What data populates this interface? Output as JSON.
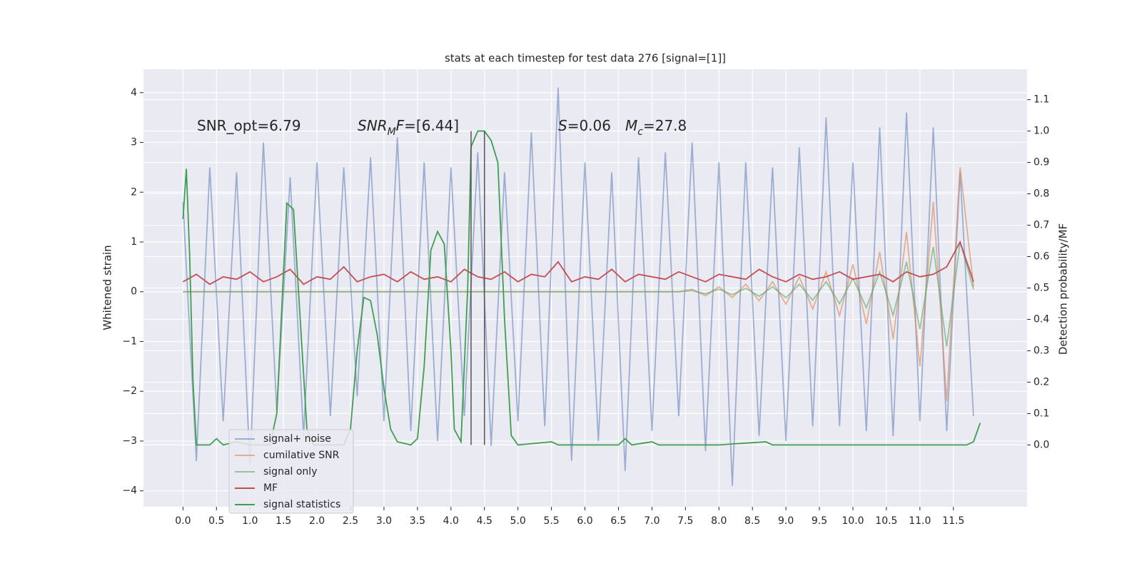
{
  "chart_data": {
    "type": "line",
    "title": "stats at each timestep for test data 276 [signal=[1]]",
    "ylabel": "Whitened strain",
    "y2label": "Detection probability/MF",
    "xlim": [
      -0.59,
      12.6
    ],
    "ylim": [
      -4.32,
      4.47
    ],
    "y2lim": [
      -0.197,
      1.197
    ],
    "grid": true,
    "legend": "lower left",
    "xticks": [
      {
        "value": 0,
        "label": "0.0"
      },
      0.5,
      {
        "value": 1,
        "label": "1.0"
      },
      1.5,
      {
        "value": 2,
        "label": "2.0"
      },
      2.5,
      {
        "value": 3,
        "label": "3.0"
      },
      3.5,
      {
        "value": 4,
        "label": "4.0"
      },
      4.5,
      {
        "value": 5,
        "label": "5.0"
      },
      5.5,
      {
        "value": 6,
        "label": "6.0"
      },
      6.5,
      {
        "value": 7,
        "label": "7.0"
      },
      7.5,
      {
        "value": 8,
        "label": "8.0"
      },
      8.5,
      {
        "value": 9,
        "label": "9.0"
      },
      9.5,
      {
        "value": 10,
        "label": "10.0"
      },
      10.5,
      {
        "value": 11,
        "label": "11.0"
      },
      11.5
    ],
    "yticks": [
      {
        "value": -4,
        "label": "−4"
      },
      {
        "value": -3,
        "label": "−3"
      },
      {
        "value": -2,
        "label": "−2"
      },
      {
        "value": -1,
        "label": "−1"
      },
      0,
      1,
      2,
      3,
      4
    ],
    "y2ticks": [
      {
        "value": 0,
        "label": "0.0"
      },
      0.1,
      0.2,
      0.3,
      0.4,
      0.5,
      0.6,
      0.7,
      0.8,
      0.9,
      {
        "value": 1,
        "label": "1.0"
      },
      1.1
    ],
    "x": [
      0,
      0.2,
      0.4,
      0.6,
      0.8,
      1,
      1.2,
      1.4,
      1.6,
      1.8,
      2,
      2.2,
      2.4,
      2.6,
      2.8,
      3,
      3.2,
      3.4,
      3.6,
      3.8,
      4,
      4.2,
      4.4,
      4.6,
      4.8,
      5,
      5.2,
      5.4,
      5.6,
      5.8,
      6,
      6.2,
      6.4,
      6.6,
      6.8,
      7,
      7.2,
      7.4,
      7.6,
      7.8,
      8,
      8.2,
      8.4,
      8.6,
      8.8,
      9,
      9.2,
      9.4,
      9.6,
      9.8,
      10,
      10.2,
      10.4,
      10.6,
      10.8,
      11,
      11.2,
      11.4,
      11.6,
      11.8
    ],
    "series": [
      {
        "name": "signal+ noise",
        "color": "#4c72b0",
        "opacity": 0.5,
        "values": [
          1.8,
          -3.4,
          2.5,
          -2.6,
          2.4,
          -3.5,
          3.0,
          -2.4,
          2.3,
          -2.9,
          2.6,
          -2.5,
          2.5,
          -2.1,
          2.7,
          -2.6,
          3.1,
          -2.8,
          2.6,
          -3.0,
          2.5,
          -2.5,
          2.8,
          -3.1,
          2.4,
          -2.6,
          3.2,
          -2.7,
          4.1,
          -3.4,
          2.6,
          -3.0,
          2.4,
          -3.6,
          2.7,
          -2.8,
          2.8,
          -2.5,
          3.0,
          -3.2,
          2.6,
          -3.9,
          2.6,
          -2.9,
          2.5,
          -3.0,
          2.9,
          -2.7,
          3.5,
          -2.7,
          2.6,
          -2.8,
          3.3,
          -2.9,
          3.6,
          -2.6,
          3.3,
          -2.8,
          2.4,
          -2.5
        ]
      },
      {
        "name": "cumilative SNR",
        "color": "#dd8452",
        "opacity": 0.6,
        "values": [
          0,
          0,
          0,
          0,
          0,
          0,
          0,
          0,
          0,
          0,
          0,
          0,
          0,
          0,
          0,
          0,
          0,
          0,
          0,
          0,
          0,
          0,
          0,
          0,
          0,
          0,
          0,
          0,
          0,
          0,
          0,
          0,
          0,
          0,
          0,
          0,
          0,
          0,
          0.05,
          -0.08,
          0.1,
          -0.12,
          0.15,
          -0.18,
          0.2,
          -0.25,
          0.3,
          -0.35,
          0.4,
          -0.48,
          0.55,
          -0.65,
          0.8,
          -0.95,
          1.2,
          -1.5,
          1.8,
          -2.2,
          2.5,
          0.1
        ]
      },
      {
        "name": "signal only",
        "color": "#55a868",
        "opacity": 0.6,
        "values": [
          0,
          0,
          0,
          0,
          0,
          0,
          0,
          0,
          0,
          0,
          0,
          0,
          0,
          0,
          0,
          0,
          0,
          0,
          0,
          0,
          0,
          0,
          0,
          0,
          0,
          0,
          0,
          0,
          0,
          0,
          0,
          0,
          0,
          0,
          0,
          0,
          0,
          0,
          0.02,
          -0.04,
          0.05,
          -0.06,
          0.07,
          -0.09,
          0.1,
          -0.12,
          0.15,
          -0.17,
          0.2,
          -0.24,
          0.27,
          -0.32,
          0.4,
          -0.47,
          0.6,
          -0.75,
          0.9,
          -1.1,
          1.0,
          0.05
        ]
      },
      {
        "name": "MF",
        "color": "#c44e52",
        "opacity": 1,
        "values": [
          0.2,
          0.35,
          0.15,
          0.3,
          0.25,
          0.4,
          0.2,
          0.3,
          0.45,
          0.15,
          0.3,
          0.25,
          0.5,
          0.2,
          0.3,
          0.35,
          0.2,
          0.4,
          0.25,
          0.3,
          0.2,
          0.45,
          0.3,
          0.25,
          0.4,
          0.2,
          0.35,
          0.3,
          0.6,
          0.2,
          0.3,
          0.25,
          0.45,
          0.2,
          0.35,
          0.3,
          0.25,
          0.4,
          0.3,
          0.2,
          0.35,
          0.3,
          0.25,
          0.45,
          0.3,
          0.2,
          0.35,
          0.25,
          0.3,
          0.4,
          0.25,
          0.3,
          0.35,
          0.2,
          0.4,
          0.3,
          0.35,
          0.5,
          1.0,
          0.2
        ]
      },
      {
        "name": "signal statistics",
        "color": "#3f9e4f",
        "opacity": 1,
        "axis": "y2",
        "x": [
          0,
          0.05,
          0.1,
          0.15,
          0.2,
          0.4,
          0.5,
          0.6,
          0.8,
          1,
          1.3,
          1.4,
          1.5,
          1.55,
          1.65,
          1.75,
          1.85,
          1.95,
          2.4,
          2.5,
          2.6,
          2.7,
          2.8,
          2.9,
          3,
          3.1,
          3.2,
          3.4,
          3.5,
          3.6,
          3.7,
          3.8,
          3.9,
          4,
          4.05,
          4.15,
          4.25,
          4.3,
          4.4,
          4.5,
          4.6,
          4.7,
          4.8,
          4.9,
          5,
          5.5,
          5.6,
          6.5,
          6.6,
          6.7,
          7,
          7.1,
          8,
          8.7,
          8.8,
          10.5,
          11.7,
          11.8,
          11.9
        ],
        "values": [
          0.72,
          0.88,
          0.6,
          0.2,
          0,
          0,
          0.02,
          0,
          0.01,
          0,
          0,
          0.1,
          0.55,
          0.77,
          0.75,
          0.4,
          0.05,
          0,
          0,
          0.05,
          0.3,
          0.47,
          0.46,
          0.35,
          0.18,
          0.05,
          0.01,
          0,
          0.02,
          0.25,
          0.62,
          0.68,
          0.64,
          0.3,
          0.05,
          0.01,
          0.5,
          0.95,
          1.0,
          1.0,
          0.97,
          0.9,
          0.4,
          0.03,
          0,
          0.01,
          0,
          0,
          0.02,
          0,
          0.01,
          0,
          0,
          0.01,
          0,
          0,
          0,
          0.01,
          0.07
        ]
      }
    ],
    "vlines": {
      "x": [
        4.3,
        4.5
      ],
      "range": [
        0,
        1
      ],
      "axis": "y2",
      "color": "#555555"
    },
    "annotations": [
      {
        "parts": [
          "SNR_opt=6.79"
        ],
        "italic": [],
        "sub": []
      },
      {
        "parts": [
          "SNR",
          "M",
          "F",
          "=[6.44]"
        ],
        "italic": [
          0,
          1,
          2
        ],
        "sub": [
          1
        ]
      },
      {
        "parts": [
          "S",
          "=0.06"
        ],
        "italic": [
          0
        ],
        "sub": []
      },
      {
        "parts": [
          "M",
          "c",
          "=27.8"
        ],
        "italic": [
          0,
          1
        ],
        "sub": [
          1
        ]
      }
    ]
  }
}
